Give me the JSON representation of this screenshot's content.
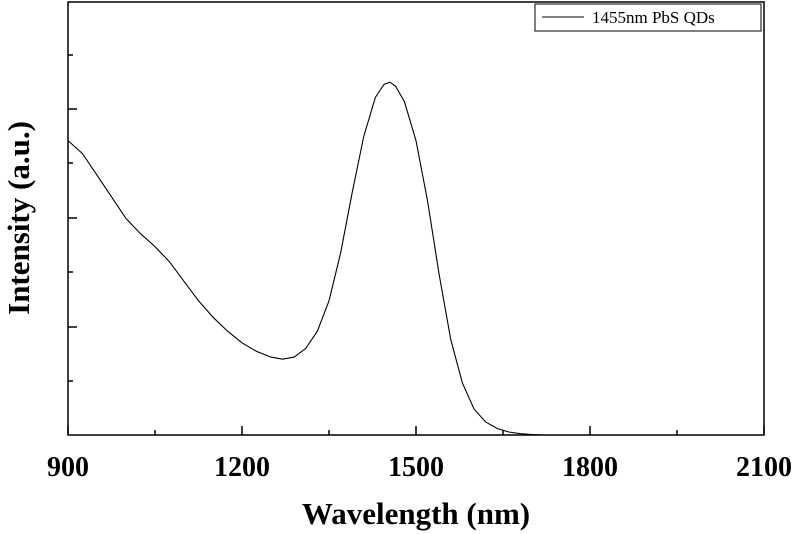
{
  "chart_data": {
    "type": "line",
    "xlabel": "Wavelength (nm)",
    "ylabel": "Intensity (a.u.)",
    "xlim": [
      900,
      2100
    ],
    "ylim": [
      0,
      1.0
    ],
    "x_ticks": [
      900,
      1200,
      1500,
      1800,
      2100
    ],
    "x_tick_labels": [
      "900",
      "1200",
      "1500",
      "1800",
      "2100"
    ],
    "y_tick_labels_shown": false,
    "grid": false,
    "legend_position": "top-right",
    "series": [
      {
        "name": "1455nm PbS QDs",
        "color": "#000000",
        "x": [
          900,
          925,
          950,
          975,
          1000,
          1025,
          1050,
          1075,
          1100,
          1125,
          1150,
          1175,
          1200,
          1225,
          1250,
          1270,
          1290,
          1310,
          1330,
          1350,
          1370,
          1390,
          1410,
          1430,
          1445,
          1455,
          1465,
          1480,
          1500,
          1520,
          1540,
          1560,
          1580,
          1600,
          1620,
          1640,
          1660,
          1680,
          1700,
          1720,
          1730
        ],
        "y": [
          0.68,
          0.65,
          0.6,
          0.55,
          0.5,
          0.465,
          0.435,
          0.4,
          0.355,
          0.31,
          0.272,
          0.24,
          0.213,
          0.193,
          0.18,
          0.175,
          0.18,
          0.2,
          0.24,
          0.31,
          0.42,
          0.56,
          0.69,
          0.78,
          0.81,
          0.815,
          0.805,
          0.77,
          0.68,
          0.54,
          0.37,
          0.22,
          0.12,
          0.06,
          0.03,
          0.015,
          0.007,
          0.003,
          0.001,
          0.0,
          0.0
        ]
      }
    ]
  }
}
